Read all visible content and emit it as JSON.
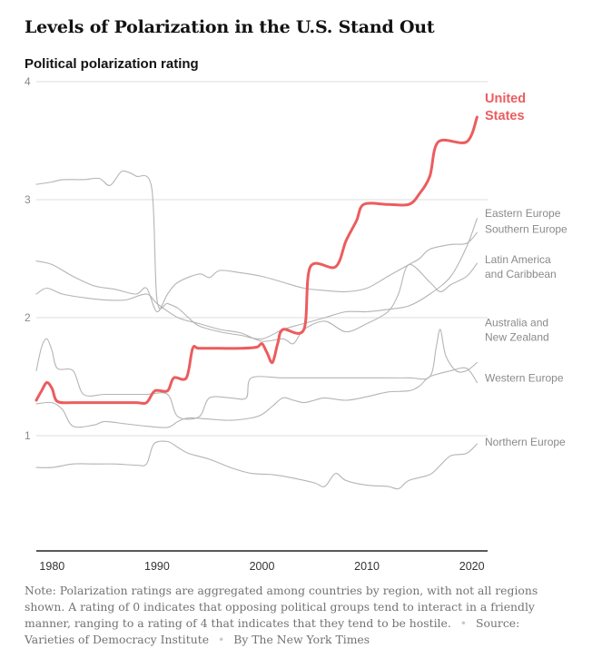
{
  "headline": "Levels of Polarization in the U.S. Stand Out",
  "subhead": "Political polarization rating",
  "note": {
    "text": "Note: Polarization ratings are aggregated among countries by region, with not all regions shown. A rating of 0 indicates that opposing political groups tend to interact in a friendly manner, ranging to a rating of 4 that indicates that they tend to be hostile.",
    "source": "Source: Varieties of Democracy Institute",
    "credit": "By The New York Times",
    "separator": "•"
  },
  "colors": {
    "highlight": "#ec5c5e",
    "others": "#b4b4b4",
    "grid": "#dcdcdc",
    "axis": "#222222",
    "text": "#8a8a8a"
  },
  "chart_data": {
    "type": "line",
    "title": "Levels of Polarization in the U.S. Stand Out",
    "ylabel": "Political polarization rating",
    "xlim": [
      1978.5,
      2021.5
    ],
    "ylim": [
      0,
      4
    ],
    "yticks": [
      1,
      2,
      3,
      4
    ],
    "xticks": [
      1980,
      1990,
      2000,
      2010,
      2020
    ],
    "grid": "horizontal",
    "series": [
      {
        "name": "United States",
        "label_lines": [
          "United",
          "States"
        ],
        "highlight": true,
        "points": [
          [
            1978.5,
            1.3
          ],
          [
            1979,
            1.38
          ],
          [
            1979.5,
            1.45
          ],
          [
            1980,
            1.4
          ],
          [
            1980.5,
            1.29
          ],
          [
            1982,
            1.28
          ],
          [
            1984,
            1.28
          ],
          [
            1986,
            1.28
          ],
          [
            1988,
            1.28
          ],
          [
            1989,
            1.28
          ],
          [
            1989.8,
            1.38
          ],
          [
            1991,
            1.38
          ],
          [
            1991.6,
            1.49
          ],
          [
            1992.8,
            1.49
          ],
          [
            1993.4,
            1.74
          ],
          [
            1994,
            1.74
          ],
          [
            1996,
            1.74
          ],
          [
            1998,
            1.74
          ],
          [
            1999.5,
            1.75
          ],
          [
            2000,
            1.78
          ],
          [
            2000.5,
            1.7
          ],
          [
            2001,
            1.62
          ],
          [
            2001.5,
            1.78
          ],
          [
            2002,
            1.9
          ],
          [
            2004,
            1.9
          ],
          [
            2004.6,
            2.43
          ],
          [
            2007,
            2.43
          ],
          [
            2008,
            2.65
          ],
          [
            2009,
            2.82
          ],
          [
            2009.7,
            2.96
          ],
          [
            2012,
            2.96
          ],
          [
            2014,
            2.96
          ],
          [
            2015,
            3.05
          ],
          [
            2016,
            3.2
          ],
          [
            2016.8,
            3.49
          ],
          [
            2019.5,
            3.49
          ],
          [
            2020.5,
            3.7
          ]
        ]
      },
      {
        "name": "Eastern Europe",
        "label_lines": [
          "Eastern Europe"
        ],
        "points": [
          [
            1978.5,
            3.13
          ],
          [
            1980,
            3.15
          ],
          [
            1981,
            3.17
          ],
          [
            1983,
            3.17
          ],
          [
            1984.5,
            3.18
          ],
          [
            1985.5,
            3.12
          ],
          [
            1986.5,
            3.23
          ],
          [
            1987,
            3.24
          ],
          [
            1988,
            3.2
          ],
          [
            1989.5,
            3.1
          ],
          [
            1990,
            2.15
          ],
          [
            1991,
            2.12
          ],
          [
            1992,
            2.08
          ],
          [
            1993,
            2.0
          ],
          [
            1994,
            1.93
          ],
          [
            1996,
            1.88
          ],
          [
            1998,
            1.85
          ],
          [
            2000,
            1.82
          ],
          [
            2002,
            1.9
          ],
          [
            2004,
            1.95
          ],
          [
            2006,
            2.0
          ],
          [
            2008,
            2.05
          ],
          [
            2010,
            2.05
          ],
          [
            2012,
            2.07
          ],
          [
            2014,
            2.1
          ],
          [
            2016,
            2.2
          ],
          [
            2018,
            2.35
          ],
          [
            2019.5,
            2.6
          ],
          [
            2020.5,
            2.84
          ]
        ]
      },
      {
        "name": "Southern Europe",
        "label_lines": [
          "Southern Europe"
        ],
        "points": [
          [
            1978.5,
            2.48
          ],
          [
            1980,
            2.45
          ],
          [
            1982,
            2.35
          ],
          [
            1984,
            2.27
          ],
          [
            1986,
            2.24
          ],
          [
            1988,
            2.2
          ],
          [
            1989,
            2.25
          ],
          [
            1990,
            2.05
          ],
          [
            1991,
            2.2
          ],
          [
            1992,
            2.3
          ],
          [
            1994,
            2.37
          ],
          [
            1995,
            2.34
          ],
          [
            1996,
            2.4
          ],
          [
            1998,
            2.38
          ],
          [
            2000,
            2.35
          ],
          [
            2002,
            2.3
          ],
          [
            2004,
            2.25
          ],
          [
            2006,
            2.23
          ],
          [
            2008,
            2.22
          ],
          [
            2010,
            2.25
          ],
          [
            2012,
            2.35
          ],
          [
            2014,
            2.45
          ],
          [
            2015,
            2.5
          ],
          [
            2016,
            2.58
          ],
          [
            2018,
            2.62
          ],
          [
            2019.5,
            2.63
          ],
          [
            2020.5,
            2.72
          ]
        ]
      },
      {
        "name": "Latin America and Caribbean",
        "label_lines": [
          "Latin America",
          "and Caribbean"
        ],
        "points": [
          [
            1978.5,
            2.2
          ],
          [
            1979.5,
            2.25
          ],
          [
            1981,
            2.2
          ],
          [
            1983,
            2.17
          ],
          [
            1985,
            2.15
          ],
          [
            1987,
            2.15
          ],
          [
            1989,
            2.2
          ],
          [
            1990,
            2.12
          ],
          [
            1992,
            2.0
          ],
          [
            1994,
            1.95
          ],
          [
            1996,
            1.9
          ],
          [
            1998,
            1.87
          ],
          [
            2000,
            1.8
          ],
          [
            2002,
            1.82
          ],
          [
            2003,
            1.78
          ],
          [
            2004,
            1.9
          ],
          [
            2006,
            1.97
          ],
          [
            2008,
            1.88
          ],
          [
            2010,
            1.95
          ],
          [
            2012,
            2.05
          ],
          [
            2013,
            2.2
          ],
          [
            2014,
            2.45
          ],
          [
            2016,
            2.3
          ],
          [
            2017,
            2.22
          ],
          [
            2018,
            2.28
          ],
          [
            2019.5,
            2.35
          ],
          [
            2020.5,
            2.46
          ]
        ]
      },
      {
        "name": "Australia and New Zealand",
        "label_lines": [
          "Australia and",
          "New Zealand"
        ],
        "points": [
          [
            1978.5,
            1.55
          ],
          [
            1979,
            1.75
          ],
          [
            1979.5,
            1.82
          ],
          [
            1980,
            1.72
          ],
          [
            1980.5,
            1.57
          ],
          [
            1982,
            1.55
          ],
          [
            1983,
            1.35
          ],
          [
            1985,
            1.35
          ],
          [
            1987,
            1.35
          ],
          [
            1989,
            1.35
          ],
          [
            1991,
            1.35
          ],
          [
            1992,
            1.16
          ],
          [
            1994,
            1.16
          ],
          [
            1995,
            1.32
          ],
          [
            1997,
            1.32
          ],
          [
            1998.5,
            1.32
          ],
          [
            1999,
            1.49
          ],
          [
            2002,
            1.49
          ],
          [
            2005,
            1.49
          ],
          [
            2008,
            1.49
          ],
          [
            2011,
            1.49
          ],
          [
            2014,
            1.49
          ],
          [
            2016,
            1.5
          ],
          [
            2016.6,
            1.75
          ],
          [
            2017,
            1.9
          ],
          [
            2017.5,
            1.68
          ],
          [
            2018.5,
            1.55
          ],
          [
            2019.5,
            1.55
          ],
          [
            2020.5,
            1.62
          ]
        ]
      },
      {
        "name": "Western Europe",
        "label_lines": [
          "Western Europe"
        ],
        "points": [
          [
            1978.5,
            1.27
          ],
          [
            1980,
            1.28
          ],
          [
            1981,
            1.22
          ],
          [
            1982,
            1.08
          ],
          [
            1984,
            1.09
          ],
          [
            1985,
            1.12
          ],
          [
            1987,
            1.1
          ],
          [
            1989,
            1.08
          ],
          [
            1991,
            1.07
          ],
          [
            1992,
            1.12
          ],
          [
            1993,
            1.15
          ],
          [
            1995,
            1.14
          ],
          [
            1997,
            1.13
          ],
          [
            1999,
            1.15
          ],
          [
            2000,
            1.18
          ],
          [
            2001,
            1.25
          ],
          [
            2002,
            1.32
          ],
          [
            2003,
            1.3
          ],
          [
            2004,
            1.28
          ],
          [
            2005,
            1.3
          ],
          [
            2006,
            1.32
          ],
          [
            2008,
            1.3
          ],
          [
            2010,
            1.33
          ],
          [
            2012,
            1.37
          ],
          [
            2014,
            1.38
          ],
          [
            2015,
            1.42
          ],
          [
            2016,
            1.5
          ],
          [
            2018,
            1.55
          ],
          [
            2019.5,
            1.57
          ],
          [
            2020.5,
            1.45
          ]
        ]
      },
      {
        "name": "Northern Europe",
        "label_lines": [
          "Northern Europe"
        ],
        "points": [
          [
            1978.5,
            0.73
          ],
          [
            1980,
            0.73
          ],
          [
            1982,
            0.76
          ],
          [
            1984,
            0.76
          ],
          [
            1986,
            0.76
          ],
          [
            1988,
            0.75
          ],
          [
            1989,
            0.76
          ],
          [
            1989.7,
            0.93
          ],
          [
            1991,
            0.95
          ],
          [
            1992,
            0.9
          ],
          [
            1993,
            0.85
          ],
          [
            1995,
            0.8
          ],
          [
            1997,
            0.73
          ],
          [
            1999,
            0.68
          ],
          [
            2001,
            0.67
          ],
          [
            2003,
            0.64
          ],
          [
            2005,
            0.6
          ],
          [
            2006,
            0.57
          ],
          [
            2007,
            0.68
          ],
          [
            2008,
            0.62
          ],
          [
            2010,
            0.58
          ],
          [
            2012,
            0.57
          ],
          [
            2013,
            0.55
          ],
          [
            2014,
            0.62
          ],
          [
            2016,
            0.67
          ],
          [
            2017,
            0.75
          ],
          [
            2018,
            0.83
          ],
          [
            2019.5,
            0.85
          ],
          [
            2020.5,
            0.93
          ]
        ]
      }
    ]
  }
}
